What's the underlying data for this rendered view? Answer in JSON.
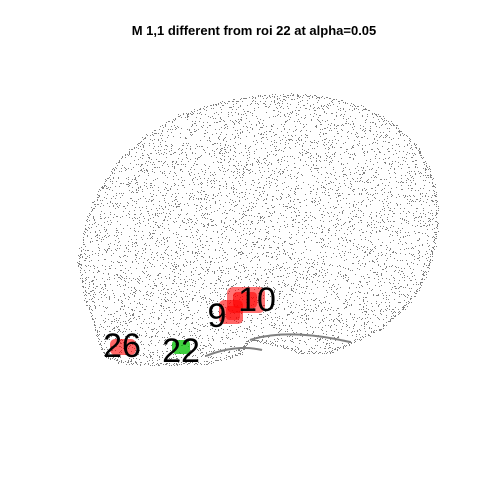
{
  "title": "M 1,1 different from roi 22 at alpha=0.05",
  "colors": {
    "brain_outline": "#808080",
    "significant": "#ff0000",
    "reference": "#00c000",
    "background": "#ffffff"
  },
  "regions": [
    {
      "label": "10",
      "role": "significant"
    },
    {
      "label": "9",
      "role": "significant"
    },
    {
      "label": "26",
      "role": "significant"
    },
    {
      "label": "22",
      "role": "reference"
    }
  ]
}
